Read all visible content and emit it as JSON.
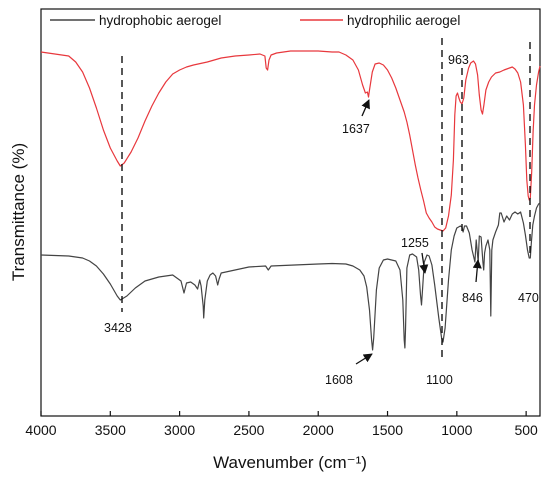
{
  "chart_data": {
    "type": "line",
    "xlabel": "Wavenumber (cm⁻¹)",
    "ylabel": "Transmittance (%)",
    "xlim": [
      4000,
      400
    ],
    "x_reversed": true,
    "x_ticks": [
      4000,
      3500,
      3000,
      2500,
      2000,
      1500,
      1000,
      500
    ],
    "y_ticks": "none",
    "grid": false,
    "legend_position": "top",
    "series": [
      {
        "name": "hydrophobic aerogel",
        "color": "#444444",
        "points": [
          [
            4000,
            255
          ],
          [
            3900,
            255.5
          ],
          [
            3800,
            256
          ],
          [
            3700,
            258
          ],
          [
            3650,
            261
          ],
          [
            3600,
            266
          ],
          [
            3550,
            274
          ],
          [
            3500,
            284
          ],
          [
            3450,
            296
          ],
          [
            3428,
            300
          ],
          [
            3380,
            296
          ],
          [
            3320,
            288
          ],
          [
            3250,
            281
          ],
          [
            3150,
            277
          ],
          [
            3050,
            275
          ],
          [
            2990,
            281
          ],
          [
            2968,
            293
          ],
          [
            2950,
            283
          ],
          [
            2920,
            282
          ],
          [
            2890,
            285
          ],
          [
            2870,
            289
          ],
          [
            2855,
            280
          ],
          [
            2845,
            286
          ],
          [
            2830,
            306
          ],
          [
            2826,
            318
          ],
          [
            2818,
            300
          ],
          [
            2800,
            281
          ],
          [
            2780,
            275
          ],
          [
            2760,
            273
          ],
          [
            2740,
            276
          ],
          [
            2725,
            285
          ],
          [
            2715,
            279
          ],
          [
            2700,
            273
          ],
          [
            2500,
            267
          ],
          [
            2380,
            266
          ],
          [
            2360,
            270
          ],
          [
            2340,
            266
          ],
          [
            2000,
            264
          ],
          [
            1900,
            263.5
          ],
          [
            1800,
            264
          ],
          [
            1750,
            266
          ],
          [
            1700,
            270
          ],
          [
            1670,
            276
          ],
          [
            1650,
            287
          ],
          [
            1630,
            310
          ],
          [
            1615,
            340
          ],
          [
            1608,
            350
          ],
          [
            1600,
            338
          ],
          [
            1580,
            290
          ],
          [
            1560,
            268
          ],
          [
            1530,
            260
          ],
          [
            1500,
            259
          ],
          [
            1440,
            261
          ],
          [
            1410,
            270
          ],
          [
            1390,
            300
          ],
          [
            1380,
            340
          ],
          [
            1375,
            348
          ],
          [
            1370,
            330
          ],
          [
            1360,
            268
          ],
          [
            1340,
            255
          ],
          [
            1320,
            254
          ],
          [
            1290,
            257
          ],
          [
            1275,
            270
          ],
          [
            1262,
            295
          ],
          [
            1255,
            305
          ],
          [
            1248,
            290
          ],
          [
            1235,
            262
          ],
          [
            1215,
            255
          ],
          [
            1200,
            256
          ],
          [
            1180,
            265
          ],
          [
            1160,
            285
          ],
          [
            1130,
            318
          ],
          [
            1110,
            338
          ],
          [
            1100,
            342
          ],
          [
            1085,
            328
          ],
          [
            1060,
            280
          ],
          [
            1040,
            250
          ],
          [
            1020,
            236
          ],
          [
            1000,
            228
          ],
          [
            975,
            226
          ],
          [
            963,
            227
          ],
          [
            955,
            232
          ],
          [
            945,
            226
          ],
          [
            930,
            226
          ],
          [
            910,
            233
          ],
          [
            890,
            250
          ],
          [
            870,
            262
          ],
          [
            860,
            240
          ],
          [
            846,
            262
          ],
          [
            838,
            236
          ],
          [
            825,
            237
          ],
          [
            812,
            262
          ],
          [
            806,
            270
          ],
          [
            800,
            253
          ],
          [
            790,
            246
          ],
          [
            775,
            240
          ],
          [
            762,
            250
          ],
          [
            755,
            316
          ],
          [
            748,
            250
          ],
          [
            740,
            240
          ],
          [
            720,
            232
          ],
          [
            700,
            225
          ],
          [
            690,
            213
          ],
          [
            680,
            213
          ],
          [
            660,
            222
          ],
          [
            640,
            216
          ],
          [
            620,
            220
          ],
          [
            600,
            214
          ],
          [
            580,
            212
          ],
          [
            560,
            214
          ],
          [
            540,
            212
          ],
          [
            520,
            223
          ],
          [
            505,
            235
          ],
          [
            490,
            250
          ],
          [
            478,
            258
          ],
          [
            470,
            258
          ],
          [
            462,
            242
          ],
          [
            452,
            225
          ],
          [
            440,
            216
          ],
          [
            425,
            208
          ],
          [
            410,
            204
          ],
          [
            400,
            203
          ]
        ]
      },
      {
        "name": "hydrophilic aerogel",
        "color": "#e8383d",
        "points": [
          [
            4000,
            52
          ],
          [
            3900,
            54
          ],
          [
            3800,
            56
          ],
          [
            3750,
            62
          ],
          [
            3700,
            72
          ],
          [
            3650,
            88
          ],
          [
            3600,
            108
          ],
          [
            3550,
            130
          ],
          [
            3500,
            148
          ],
          [
            3450,
            161
          ],
          [
            3428,
            166
          ],
          [
            3400,
            163
          ],
          [
            3350,
            152
          ],
          [
            3300,
            138
          ],
          [
            3250,
            121
          ],
          [
            3200,
            106
          ],
          [
            3150,
            93
          ],
          [
            3100,
            82
          ],
          [
            3050,
            74
          ],
          [
            3000,
            70
          ],
          [
            2950,
            67
          ],
          [
            2900,
            65
          ],
          [
            2800,
            62
          ],
          [
            2700,
            58
          ],
          [
            2600,
            56
          ],
          [
            2500,
            55
          ],
          [
            2420,
            54
          ],
          [
            2385,
            56
          ],
          [
            2375,
            68
          ],
          [
            2365,
            70
          ],
          [
            2355,
            60
          ],
          [
            2340,
            55
          ],
          [
            2300,
            53
          ],
          [
            2200,
            51
          ],
          [
            2100,
            51
          ],
          [
            2000,
            51
          ],
          [
            1900,
            52
          ],
          [
            1850,
            52
          ],
          [
            1800,
            55
          ],
          [
            1750,
            60
          ],
          [
            1710,
            70
          ],
          [
            1680,
            85
          ],
          [
            1660,
            93
          ],
          [
            1645,
            92
          ],
          [
            1637,
            97
          ],
          [
            1630,
            90
          ],
          [
            1610,
            72
          ],
          [
            1590,
            64
          ],
          [
            1560,
            63
          ],
          [
            1530,
            65
          ],
          [
            1500,
            70
          ],
          [
            1470,
            78
          ],
          [
            1440,
            88
          ],
          [
            1420,
            96
          ],
          [
            1400,
            104
          ],
          [
            1380,
            112
          ],
          [
            1360,
            122
          ],
          [
            1340,
            135
          ],
          [
            1320,
            150
          ],
          [
            1300,
            165
          ],
          [
            1280,
            178
          ],
          [
            1260,
            190
          ],
          [
            1240,
            201
          ],
          [
            1220,
            213
          ],
          [
            1200,
            218
          ],
          [
            1180,
            222
          ],
          [
            1160,
            227
          ],
          [
            1140,
            229
          ],
          [
            1120,
            230
          ],
          [
            1100,
            231
          ],
          [
            1080,
            228
          ],
          [
            1060,
            216
          ],
          [
            1040,
            195
          ],
          [
            1025,
            160
          ],
          [
            1015,
            115
          ],
          [
            1005,
            96
          ],
          [
            995,
            93
          ],
          [
            985,
            98
          ],
          [
            975,
            102
          ],
          [
            963,
            104
          ],
          [
            950,
            98
          ],
          [
            935,
            80
          ],
          [
            915,
            68
          ],
          [
            900,
            63
          ],
          [
            880,
            61
          ],
          [
            865,
            64
          ],
          [
            850,
            75
          ],
          [
            838,
            95
          ],
          [
            825,
            110
          ],
          [
            815,
            114
          ],
          [
            805,
            105
          ],
          [
            790,
            90
          ],
          [
            770,
            82
          ],
          [
            750,
            77
          ],
          [
            720,
            73
          ],
          [
            690,
            72
          ],
          [
            660,
            70
          ],
          [
            620,
            68
          ],
          [
            600,
            67
          ],
          [
            580,
            69
          ],
          [
            560,
            73
          ],
          [
            540,
            82
          ],
          [
            520,
            105
          ],
          [
            505,
            145
          ],
          [
            495,
            180
          ],
          [
            485,
            196
          ],
          [
            478,
            200
          ],
          [
            470,
            198
          ],
          [
            460,
            172
          ],
          [
            450,
            132
          ],
          [
            440,
            105
          ],
          [
            425,
            85
          ],
          [
            410,
            72
          ],
          [
            400,
            66
          ]
        ]
      }
    ],
    "annotations": [
      {
        "text": "3428",
        "x": 3428,
        "dashed_line": true,
        "arrow": false
      },
      {
        "text": "1637",
        "x": 1637,
        "arrow": true
      },
      {
        "text": "1608",
        "x": 1608,
        "arrow": true
      },
      {
        "text": "1255",
        "x": 1255,
        "arrow": true
      },
      {
        "text": "1100",
        "x": 1100,
        "dashed_line": true
      },
      {
        "text": "963",
        "x": 963,
        "dashed_line": true
      },
      {
        "text": "846",
        "x": 846,
        "arrow": true
      },
      {
        "text": "470",
        "x": 470,
        "dashed_line": true
      }
    ]
  }
}
